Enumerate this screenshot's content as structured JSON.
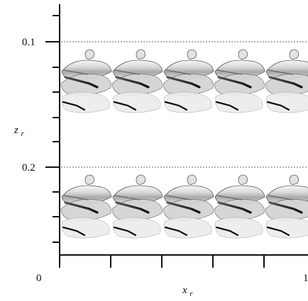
{
  "figure": {
    "axes": {
      "x": {
        "label": "x",
        "label_subscript": "r",
        "tick_labels": [
          "0",
          "1"
        ]
      },
      "y": {
        "label": "z",
        "label_subscript": "r",
        "tick_labels": [
          "0.1",
          "0.2"
        ]
      }
    },
    "colors": {
      "axis": "#111111",
      "dotted_reference": "#9a9a9a",
      "structure_dark": "#111111",
      "structure_mid": "#6b6b6b",
      "structure_light": "#d6d6d6",
      "background": "#ffffff"
    },
    "visual_description": "",
    "rows": 2,
    "columns": 5
  }
}
